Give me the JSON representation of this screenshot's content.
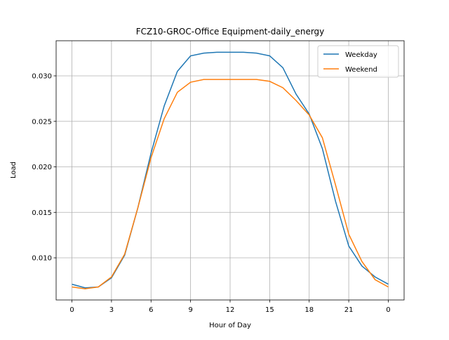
{
  "chart_data": {
    "type": "line",
    "title": "FCZ10-GROC-Office Equipment-daily_energy",
    "x_label": "Hour of Day",
    "y_label": "Load",
    "x": [
      0,
      1,
      2,
      3,
      4,
      5,
      6,
      7,
      8,
      9,
      10,
      11,
      12,
      13,
      14,
      15,
      16,
      17,
      18,
      19,
      20,
      21,
      22,
      23,
      24
    ],
    "series": [
      {
        "name": "Weekday",
        "color": "#1f77b4",
        "values": [
          0.0071,
          0.0067,
          0.0068,
          0.0078,
          0.0103,
          0.0155,
          0.0215,
          0.0267,
          0.0305,
          0.0322,
          0.0325,
          0.0326,
          0.0326,
          0.0326,
          0.0325,
          0.0322,
          0.0309,
          0.028,
          0.0258,
          0.022,
          0.0162,
          0.0113,
          0.0091,
          0.0079,
          0.0071
        ]
      },
      {
        "name": "Weekend",
        "color": "#ff7f0e",
        "values": [
          0.0068,
          0.0066,
          0.0068,
          0.0079,
          0.0104,
          0.0155,
          0.021,
          0.0253,
          0.0282,
          0.0293,
          0.0296,
          0.0296,
          0.0296,
          0.0296,
          0.0296,
          0.0294,
          0.0287,
          0.0273,
          0.0257,
          0.0232,
          0.018,
          0.0126,
          0.0096,
          0.0076,
          0.0068
        ]
      }
    ],
    "xlim": [
      -1.2,
      25.2
    ],
    "xticks": [
      0,
      3,
      6,
      9,
      12,
      15,
      18,
      21,
      {
        "value": 24,
        "label": "0"
      }
    ],
    "ylim": [
      0.00537,
      0.03386
    ],
    "yticks": [
      {
        "value": 0.01,
        "label": "0.010"
      },
      {
        "value": 0.015,
        "label": "0.015"
      },
      {
        "value": 0.02,
        "label": "0.020"
      },
      {
        "value": 0.025,
        "label": "0.025"
      },
      {
        "value": 0.03,
        "label": "0.030"
      }
    ],
    "grid": true,
    "legend": "upper right"
  }
}
